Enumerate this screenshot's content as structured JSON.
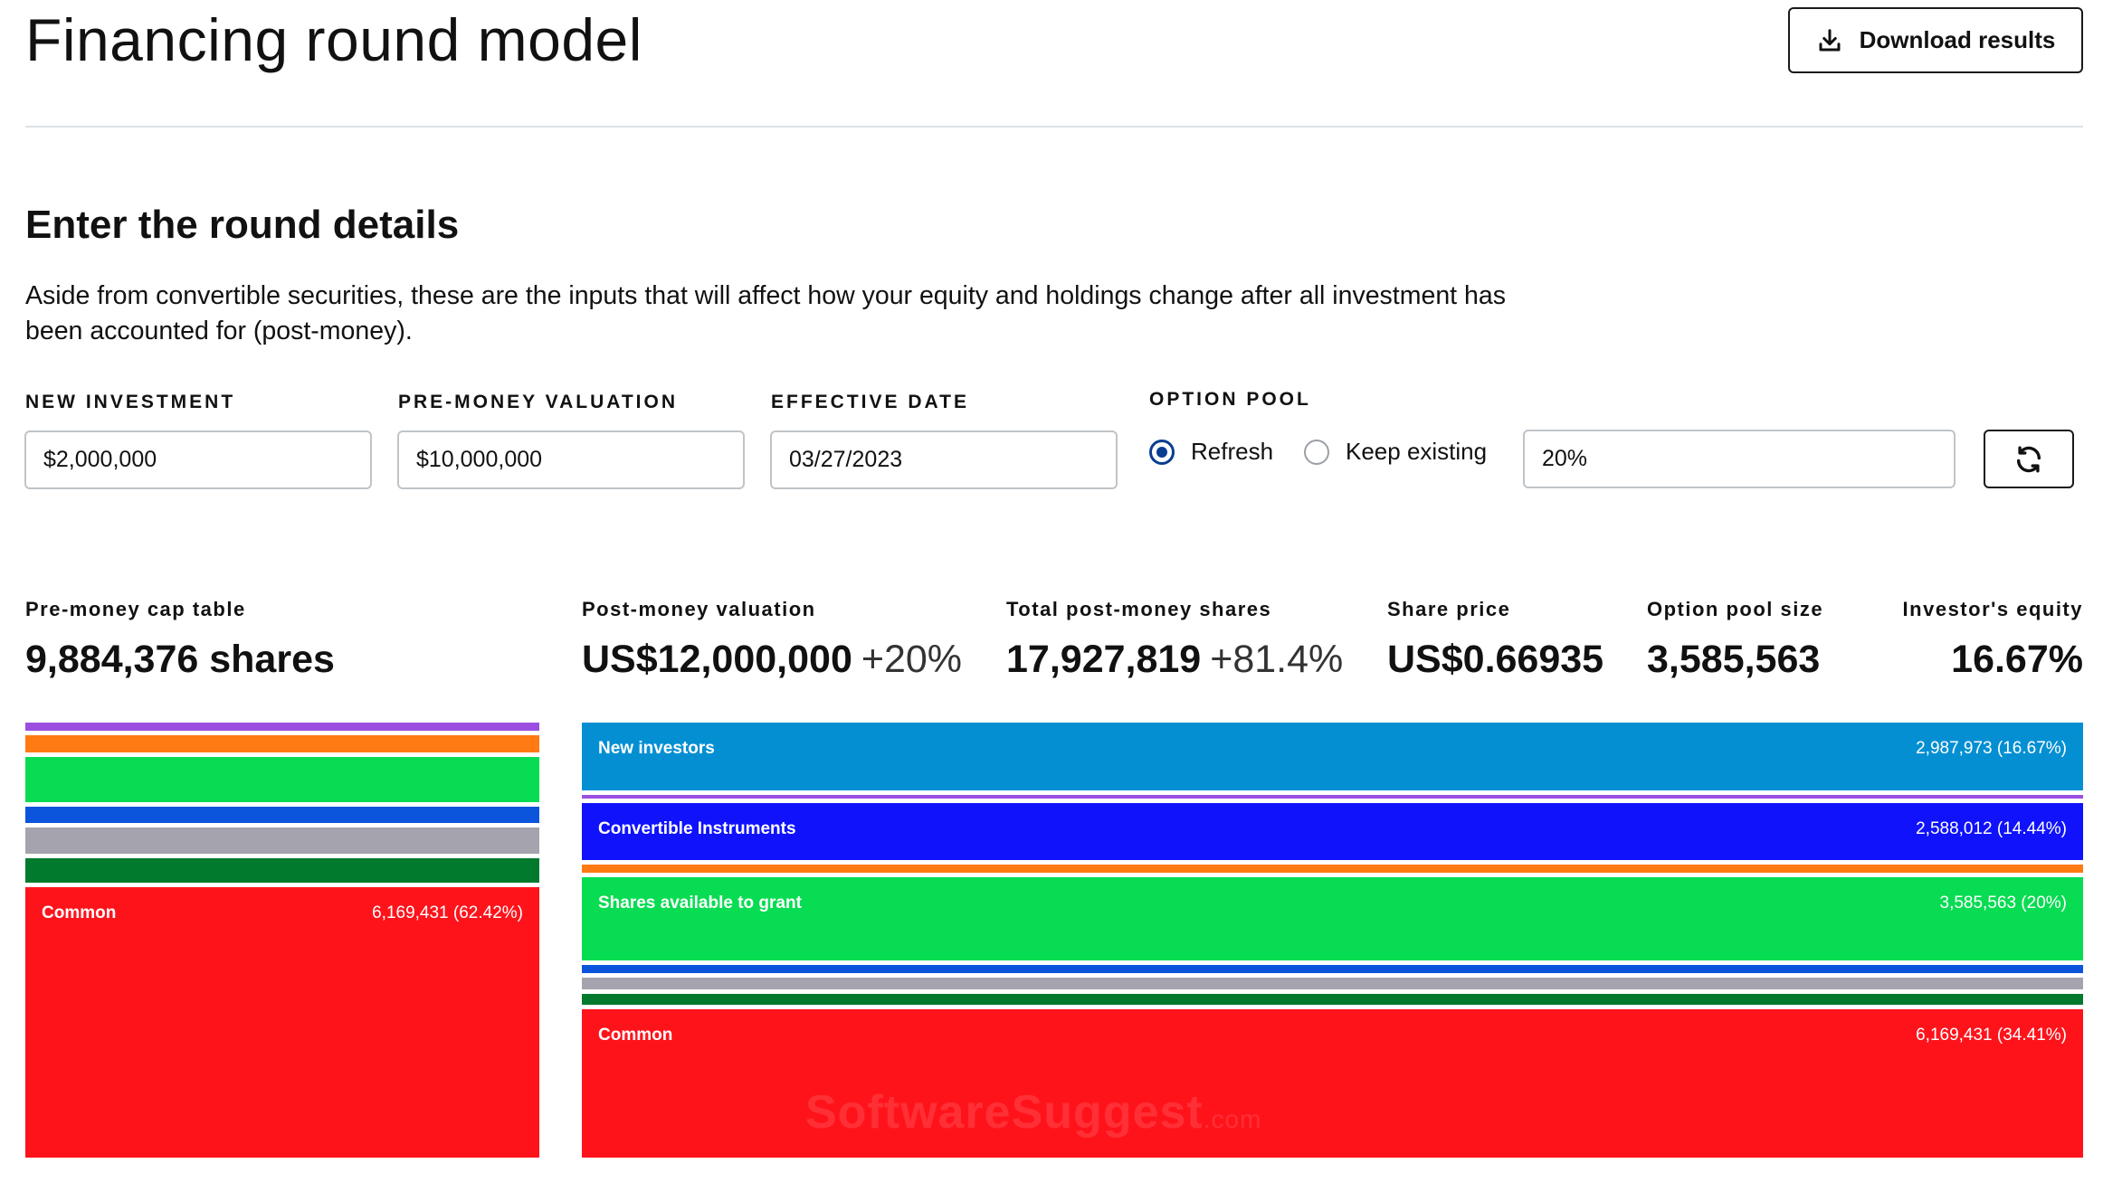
{
  "header": {
    "title": "Financing round model",
    "download_label": "Download results"
  },
  "section": {
    "title": "Enter the round details",
    "description": "Aside from convertible securities, these are the inputs that will affect how your equity and holdings change after all investment has been accounted for (post-money)."
  },
  "inputs": {
    "new_investment": {
      "label": "NEW INVESTMENT",
      "value": "$2,000,000"
    },
    "pre_money": {
      "label": "PRE-MONEY VALUATION",
      "value": "$10,000,000"
    },
    "effective_date": {
      "label": "EFFECTIVE DATE",
      "value": "03/27/2023"
    },
    "option_pool": {
      "label": "OPTION POOL",
      "refresh_label": "Refresh",
      "keep_label": "Keep existing",
      "selected": "refresh",
      "value": "20%"
    }
  },
  "metrics": {
    "pre_money_cap": {
      "label": "Pre-money cap table",
      "value": "9,884,376 shares"
    },
    "post_money_valuation": {
      "label": "Post-money valuation",
      "value": "US$12,000,000",
      "delta": "+20%"
    },
    "total_shares": {
      "label": "Total post-money shares",
      "value": "17,927,819",
      "delta": "+81.4%"
    },
    "share_price": {
      "label": "Share price",
      "value": "US$0.66935"
    },
    "option_pool_size": {
      "label": "Option pool size",
      "value": "3,585,563"
    },
    "investor_equity": {
      "label": "Investor's equity",
      "value": "16.67%"
    }
  },
  "pre_money_chart": {
    "common_label": "Common",
    "common_value": "6,169,431 (62.42%)"
  },
  "post_money_chart": {
    "new_investors_label": "New investors",
    "new_investors_value": "2,987,973 (16.67%)",
    "convertible_label": "Convertible Instruments",
    "convertible_value": "2,588,012 (14.44%)",
    "grant_label": "Shares available to grant",
    "grant_value": "3,585,563 (20%)",
    "common_label": "Common",
    "common_value": "6,169,431 (34.41%)"
  },
  "colors": {
    "purple": "#9b4fe0",
    "orange": "#ff7a12",
    "green": "#08dc52",
    "blue": "#0a55db",
    "gray": "#a4a3ae",
    "dark_green": "#027a2e",
    "red": "#ff131b",
    "sky": "#058fd3",
    "deep_blue": "#0f12fb",
    "radio_accent": "#0a3d91"
  },
  "watermark": {
    "main": "SoftwareSuggest",
    "suffix": ".com"
  }
}
